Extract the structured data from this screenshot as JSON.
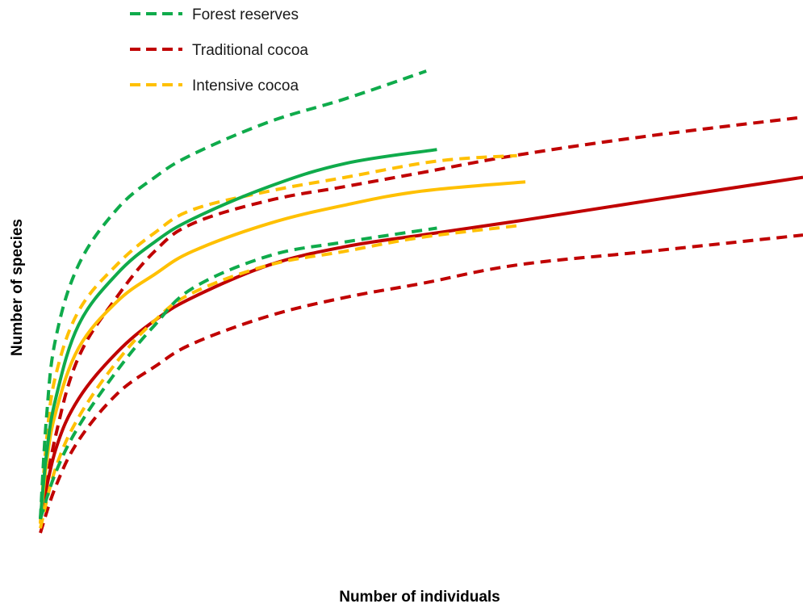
{
  "chart_data": {
    "type": "line",
    "title": "",
    "xlabel": "Number of individuals",
    "ylabel": "Number of species",
    "xlim": [
      0,
      100
    ],
    "ylim": [
      0,
      100
    ],
    "grid": false,
    "legend": "top-left",
    "legend_entries": [
      {
        "label": "Forest reserves",
        "color": "#0fab4b",
        "style": "dashed"
      },
      {
        "label": "Traditional cocoa",
        "color": "#c00000",
        "style": "dashed"
      },
      {
        "label": "Intensive cocoa",
        "color": "#ffc000",
        "style": "dashed"
      }
    ],
    "series": [
      {
        "group": "forest",
        "role": "upper",
        "color": "#0fab4b",
        "style": "dashed",
        "x": [
          0,
          0.8,
          2,
          5,
          10,
          15,
          20,
          30,
          40,
          50.6
        ],
        "y": [
          3,
          25,
          42,
          58,
          70,
          77,
          82,
          89,
          94,
          100
        ]
      },
      {
        "group": "forest",
        "role": "estimate",
        "color": "#0fab4b",
        "style": "solid",
        "x": [
          0,
          0.8,
          2,
          5,
          10,
          15,
          20,
          30,
          40,
          52
        ],
        "y": [
          3,
          17,
          29,
          45,
          56,
          63,
          68,
          75,
          80,
          83
        ]
      },
      {
        "group": "forest",
        "role": "lower",
        "color": "#0fab4b",
        "style": "dashed",
        "x": [
          0,
          2,
          5,
          10,
          15,
          20,
          30,
          40,
          52
        ],
        "y": [
          3,
          13,
          23,
          35,
          45,
          53,
          60,
          63,
          66
        ]
      },
      {
        "group": "intensive",
        "role": "upper",
        "color": "#ffc000",
        "style": "dashed",
        "x": [
          0,
          0.8,
          2,
          5,
          10,
          15,
          20,
          30,
          40,
          52,
          62.5
        ],
        "y": [
          2,
          20,
          34,
          48,
          58,
          65,
          70,
          74,
          77,
          80.5,
          81.7
        ]
      },
      {
        "group": "intensive",
        "role": "estimate",
        "color": "#ffc000",
        "style": "solid",
        "x": [
          0,
          0.8,
          2,
          5,
          10,
          15,
          20,
          30,
          40,
          50,
          63.6
        ],
        "y": [
          2,
          15,
          26,
          40,
          50,
          56,
          61,
          67,
          71,
          74,
          76
        ]
      },
      {
        "group": "intensive",
        "role": "lower",
        "color": "#ffc000",
        "style": "dashed",
        "x": [
          0,
          2,
          5,
          10,
          15,
          20,
          30,
          40,
          50,
          62.5
        ],
        "y": [
          1,
          14,
          25,
          37,
          46,
          52,
          58,
          61,
          64,
          66.5
        ]
      },
      {
        "group": "traditional",
        "role": "upper",
        "color": "#c00000",
        "style": "dashed",
        "x": [
          0,
          2,
          5,
          10,
          15,
          20,
          30,
          40,
          50,
          62.5,
          80,
          100
        ],
        "y": [
          3,
          21,
          38,
          51,
          61,
          67,
          72,
          75,
          78,
          81.8,
          86,
          90
        ]
      },
      {
        "group": "traditional",
        "role": "estimate",
        "color": "#c00000",
        "style": "solid",
        "x": [
          0,
          2,
          5,
          10,
          15,
          20,
          30,
          40,
          50,
          62.5,
          80,
          100
        ],
        "y": [
          3,
          18,
          29,
          39,
          46,
          51,
          58,
          62,
          64.5,
          67.5,
          72,
          77
        ]
      },
      {
        "group": "traditional",
        "role": "lower",
        "color": "#c00000",
        "style": "dashed",
        "x": [
          0,
          2,
          5,
          10,
          15,
          20,
          30,
          40,
          50,
          62.5,
          80,
          100
        ],
        "y": [
          0,
          10,
          20,
          30,
          36,
          41,
          47,
          51,
          54,
          58,
          61,
          64.5
        ]
      }
    ]
  }
}
